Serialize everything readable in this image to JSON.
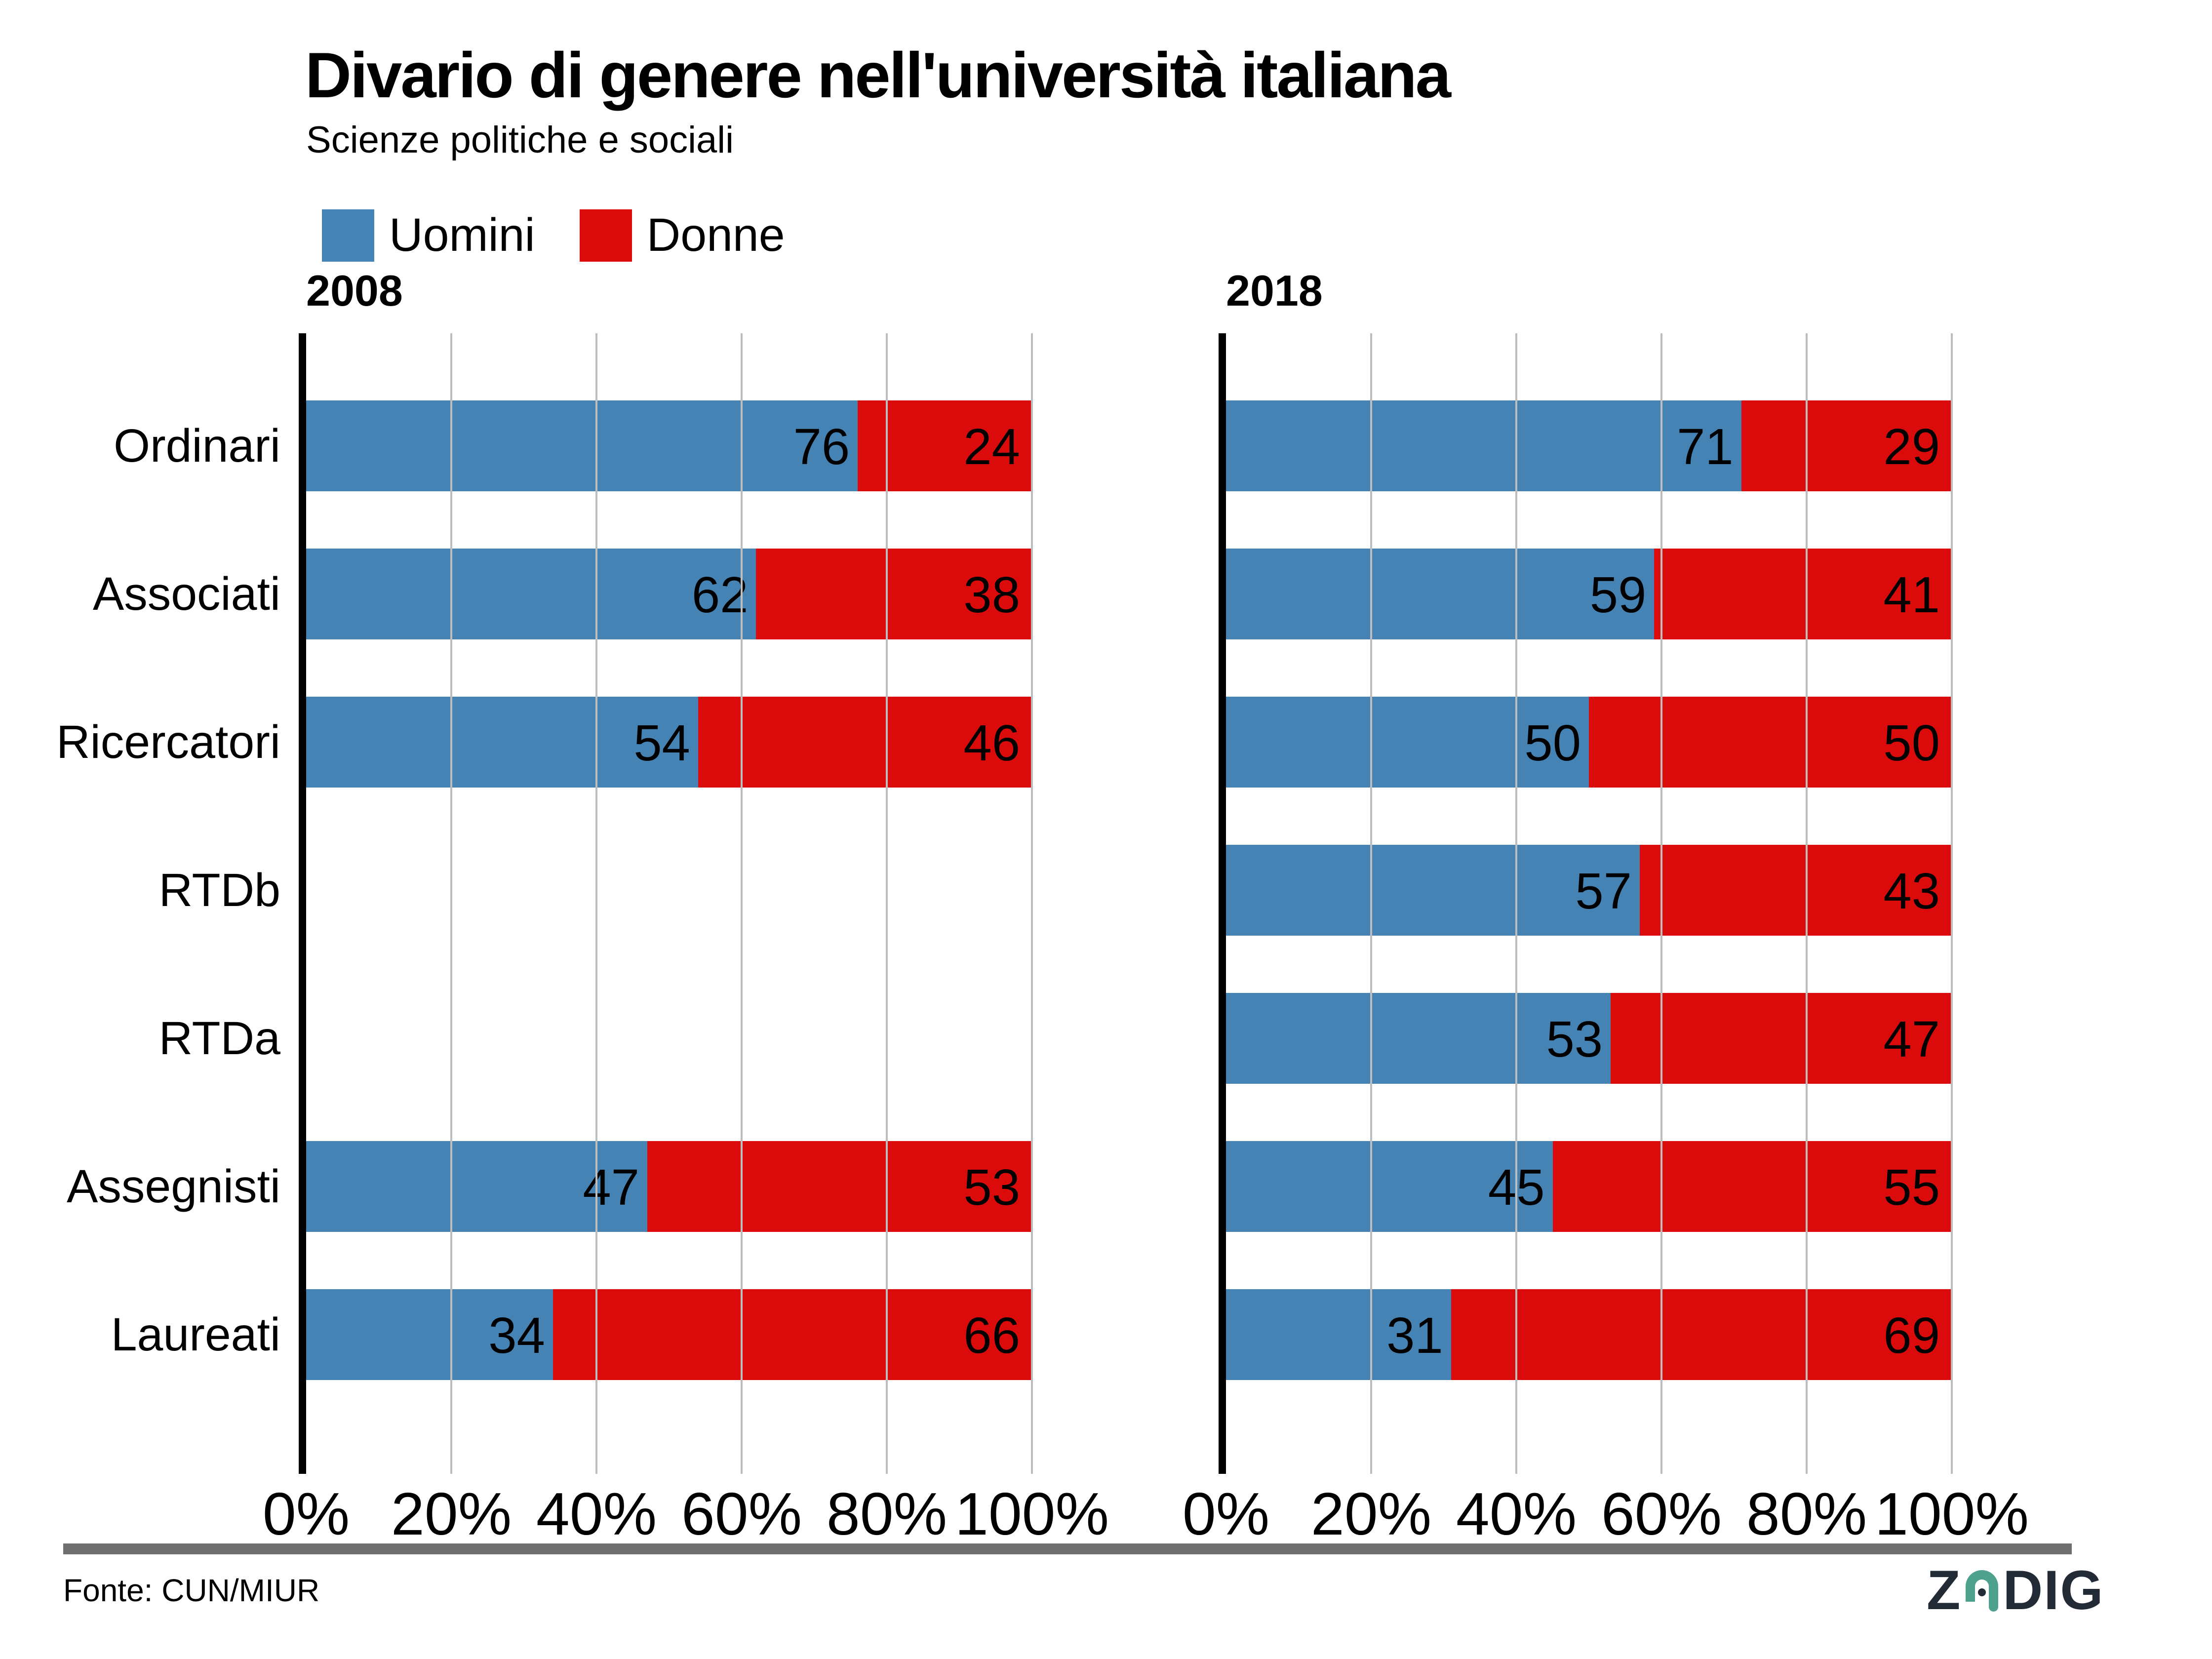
{
  "title": "Divario di genere nell'università italiana",
  "subtitle": "Scienze politiche e sociali",
  "legend": {
    "uomini": {
      "label": "Uomini",
      "color": "#4583B4"
    },
    "donne": {
      "label": "Donne",
      "color": "#DB0B0B"
    }
  },
  "x_ticks": [
    "0%",
    "20%",
    "40%",
    "60%",
    "80%",
    "100%"
  ],
  "footer": {
    "source": "Fonte: CUN/MIUR",
    "logo_z": "Z",
    "logo_dig": "DIG",
    "logo_navy": "#222B35",
    "logo_teal": "#4EA18D"
  },
  "chart_data": {
    "type": "bar",
    "orientation": "horizontal",
    "stacked": true,
    "units": "percent",
    "title": "Divario di genere nell'università italiana",
    "subtitle": "Scienze politiche e sociali",
    "categories": [
      "Ordinari",
      "Associati",
      "Ricercatori",
      "RTDb",
      "RTDa",
      "Assegnisti",
      "Laureati"
    ],
    "xlim": [
      0,
      100
    ],
    "x_tick_labels": [
      "0%",
      "20%",
      "40%",
      "60%",
      "80%",
      "100%"
    ],
    "grid": true,
    "gridline_positions": [
      20,
      40,
      60,
      80,
      100
    ],
    "legend_entries": [
      "Uomini",
      "Donne"
    ],
    "legend_position": "top-left",
    "panels": [
      {
        "year": "2008",
        "series": [
          {
            "name": "Uomini",
            "color": "#4583B4",
            "values": [
              76,
              62,
              54,
              null,
              null,
              47,
              34
            ]
          },
          {
            "name": "Donne",
            "color": "#DB0B0B",
            "values": [
              24,
              38,
              46,
              null,
              null,
              53,
              66
            ]
          }
        ]
      },
      {
        "year": "2018",
        "series": [
          {
            "name": "Uomini",
            "color": "#4583B4",
            "values": [
              71,
              59,
              50,
              57,
              53,
              45,
              31
            ]
          },
          {
            "name": "Donne",
            "color": "#DB0B0B",
            "values": [
              29,
              41,
              50,
              43,
              47,
              55,
              69
            ]
          }
        ]
      }
    ],
    "source": "Fonte: CUN/MIUR"
  }
}
